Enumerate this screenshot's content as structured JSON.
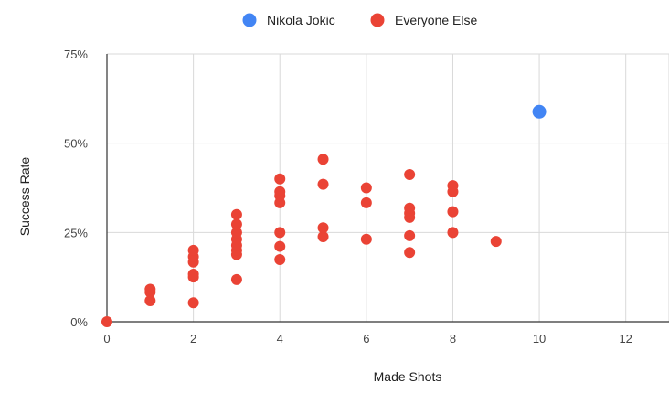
{
  "chart_data": {
    "type": "scatter",
    "title": "",
    "xlabel": "Made Shots",
    "ylabel": "Success Rate",
    "xlim": [
      0,
      13
    ],
    "ylim": [
      0,
      75
    ],
    "x_ticks": [
      0,
      2,
      4,
      6,
      8,
      10,
      12
    ],
    "x_tick_labels": [
      "0",
      "2",
      "4",
      "6",
      "8",
      "10",
      "12"
    ],
    "y_ticks": [
      0,
      25,
      50,
      75
    ],
    "y_tick_labels": [
      "0%",
      "25%",
      "50%",
      "75%"
    ],
    "grid": true,
    "legend_position": "top",
    "series": [
      {
        "name": "Nikola Jokic",
        "color": "#4285F4",
        "points": [
          [
            10,
            58.8
          ]
        ]
      },
      {
        "name": "Everyone Else",
        "color": "#EA4335",
        "points": [
          [
            0,
            0
          ],
          [
            1,
            5.9
          ],
          [
            1,
            8.3
          ],
          [
            1,
            9.1
          ],
          [
            2,
            5.3
          ],
          [
            2,
            12.5
          ],
          [
            2,
            13.3
          ],
          [
            2,
            16.7
          ],
          [
            2,
            18.2
          ],
          [
            2,
            20.0
          ],
          [
            3,
            11.8
          ],
          [
            3,
            18.8
          ],
          [
            3,
            20.0
          ],
          [
            3,
            21.4
          ],
          [
            3,
            23.1
          ],
          [
            3,
            25.0
          ],
          [
            3,
            27.3
          ],
          [
            3,
            30.0
          ],
          [
            4,
            17.4
          ],
          [
            4,
            21.1
          ],
          [
            4,
            25.0
          ],
          [
            4,
            33.3
          ],
          [
            4,
            35.3
          ],
          [
            4,
            36.4
          ],
          [
            4,
            40.0
          ],
          [
            5,
            23.8
          ],
          [
            5,
            26.3
          ],
          [
            5,
            38.5
          ],
          [
            5,
            45.5
          ],
          [
            6,
            23.1
          ],
          [
            6,
            33.3
          ],
          [
            6,
            37.5
          ],
          [
            7,
            19.4
          ],
          [
            7,
            24.1
          ],
          [
            7,
            29.2
          ],
          [
            7,
            30.4
          ],
          [
            7,
            31.8
          ],
          [
            7,
            41.2
          ],
          [
            8,
            25.0
          ],
          [
            8,
            30.8
          ],
          [
            8,
            36.4
          ],
          [
            8,
            38.1
          ],
          [
            9,
            22.5
          ]
        ]
      }
    ]
  }
}
